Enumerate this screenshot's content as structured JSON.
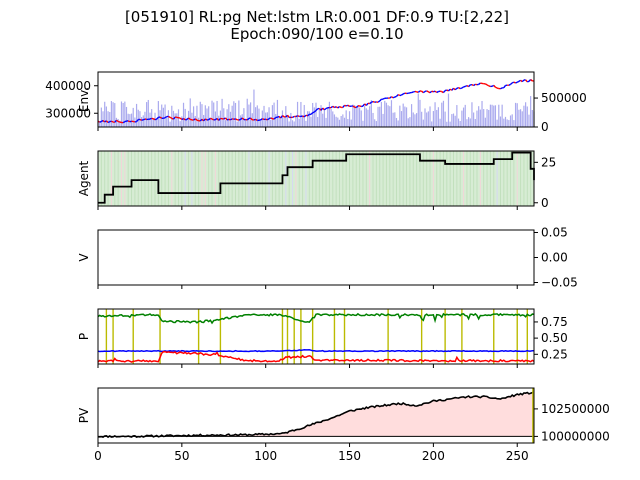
{
  "title_line1": "[051910] RL:pg Net:lstm LR:0.001 DF:0.9 TU:[2,22]",
  "title_line2": "Epoch:090/100 e=0.10",
  "colors": {
    "price_up": "#0000ff",
    "price_down": "#ff0000",
    "volume": "#aaaaee",
    "agent_line": "#000000",
    "action_hold": "#d7ecd4",
    "action_buy": "#f2d5d9",
    "action_sell": "#d5d9f2",
    "p_green": "#008000",
    "p_blue": "#0000ff",
    "p_red": "#ff0000",
    "exploration_marker": "#bbbb00",
    "pv_line": "#000000",
    "pv_fill": "#ffdddd"
  },
  "chart_data": [
    {
      "type": "line",
      "name": "environment",
      "ylabel": "Env.",
      "xlim": [
        0,
        260
      ],
      "ylim_left": [
        250000,
        450000
      ],
      "left_ticks": [
        "300000",
        "400000"
      ],
      "right_ticks": [
        "0",
        "500000"
      ],
      "price_keypoints": [
        [
          0,
          270000
        ],
        [
          20,
          270000
        ],
        [
          40,
          285000
        ],
        [
          60,
          276000
        ],
        [
          80,
          280000
        ],
        [
          100,
          276000
        ],
        [
          110,
          288000
        ],
        [
          125,
          290000
        ],
        [
          130,
          312000
        ],
        [
          145,
          325000
        ],
        [
          155,
          325000
        ],
        [
          165,
          340000
        ],
        [
          175,
          358000
        ],
        [
          185,
          372000
        ],
        [
          195,
          380000
        ],
        [
          205,
          376000
        ],
        [
          220,
          400000
        ],
        [
          230,
          408000
        ],
        [
          240,
          392000
        ],
        [
          250,
          415000
        ],
        [
          260,
          420000
        ]
      ],
      "volume_right_scale_max": 950000
    },
    {
      "type": "line",
      "name": "agent",
      "ylabel": "Agent",
      "xlim": [
        0,
        260
      ],
      "ylim": [
        -2,
        32
      ],
      "ticks": [
        "0",
        "25"
      ],
      "steps": [
        [
          0,
          0
        ],
        [
          4,
          0
        ],
        [
          4,
          5
        ],
        [
          9,
          5
        ],
        [
          9,
          10
        ],
        [
          20,
          10
        ],
        [
          20,
          14
        ],
        [
          36,
          14
        ],
        [
          36,
          6
        ],
        [
          73,
          6
        ],
        [
          73,
          12
        ],
        [
          110,
          12
        ],
        [
          110,
          17
        ],
        [
          113,
          17
        ],
        [
          113,
          22
        ],
        [
          128,
          22
        ],
        [
          128,
          26
        ],
        [
          148,
          26
        ],
        [
          148,
          30
        ],
        [
          192,
          30
        ],
        [
          192,
          26
        ],
        [
          207,
          26
        ],
        [
          207,
          24
        ],
        [
          236,
          24
        ],
        [
          236,
          27
        ],
        [
          247,
          27
        ],
        [
          247,
          31
        ],
        [
          258,
          31
        ],
        [
          258,
          21
        ],
        [
          260,
          21
        ],
        [
          260,
          14
        ]
      ]
    },
    {
      "type": "line",
      "name": "value",
      "ylabel": "V",
      "xlim": [
        0,
        260
      ],
      "ylim": [
        -0.055,
        0.055
      ],
      "ticks": [
        "0.05",
        "0.00",
        "−0.05"
      ]
    },
    {
      "type": "line",
      "name": "policy",
      "ylabel": "P",
      "xlim": [
        0,
        260
      ],
      "ylim": [
        0.1,
        0.95
      ],
      "ticks": [
        "0.75",
        "0.50",
        "0.25"
      ],
      "exploration_x": [
        5,
        9,
        21,
        37,
        60,
        73,
        110,
        113,
        117,
        121,
        128,
        141,
        147,
        173,
        193,
        207,
        217,
        236,
        250,
        256
      ],
      "series": [
        {
          "key": "green",
          "values": [
            [
              0,
              0.84
            ],
            [
              30,
              0.86
            ],
            [
              36,
              0.86
            ],
            [
              38,
              0.76
            ],
            [
              60,
              0.75
            ],
            [
              70,
              0.78
            ],
            [
              90,
              0.86
            ],
            [
              108,
              0.86
            ],
            [
              112,
              0.84
            ],
            [
              126,
              0.74
            ],
            [
              130,
              0.86
            ],
            [
              160,
              0.86
            ],
            [
              200,
              0.86
            ],
            [
              240,
              0.86
            ],
            [
              260,
              0.86
            ]
          ]
        },
        {
          "key": "blue",
          "values": [
            [
              0,
              0.3
            ],
            [
              60,
              0.3
            ],
            [
              110,
              0.3
            ],
            [
              126,
              0.32
            ],
            [
              130,
              0.3
            ],
            [
              200,
              0.3
            ],
            [
              260,
              0.3
            ]
          ]
        },
        {
          "key": "red",
          "values": [
            [
              0,
              0.14
            ],
            [
              36,
              0.15
            ],
            [
              38,
              0.28
            ],
            [
              60,
              0.26
            ],
            [
              70,
              0.24
            ],
            [
              90,
              0.15
            ],
            [
              108,
              0.15
            ],
            [
              112,
              0.2
            ],
            [
              126,
              0.22
            ],
            [
              130,
              0.16
            ],
            [
              200,
              0.15
            ],
            [
              260,
              0.15
            ]
          ]
        }
      ]
    },
    {
      "type": "area",
      "name": "portfolio-value",
      "ylabel": "PV",
      "xlim": [
        0,
        260
      ],
      "ylim": [
        99400000,
        104400000
      ],
      "ticks": [
        "102500000",
        "100000000"
      ],
      "base": 100000000,
      "x_ticks": [
        "0",
        "50",
        "100",
        "150",
        "200",
        "250"
      ],
      "keypoints": [
        [
          0,
          100000000
        ],
        [
          20,
          100000000
        ],
        [
          60,
          100100000
        ],
        [
          90,
          100150000
        ],
        [
          110,
          100250000
        ],
        [
          120,
          100700000
        ],
        [
          130,
          101200000
        ],
        [
          140,
          101700000
        ],
        [
          150,
          102300000
        ],
        [
          160,
          102600000
        ],
        [
          170,
          102800000
        ],
        [
          180,
          103000000
        ],
        [
          190,
          102800000
        ],
        [
          200,
          103200000
        ],
        [
          210,
          103400000
        ],
        [
          220,
          103600000
        ],
        [
          230,
          103600000
        ],
        [
          240,
          103400000
        ],
        [
          250,
          103800000
        ],
        [
          260,
          104000000
        ]
      ]
    }
  ]
}
